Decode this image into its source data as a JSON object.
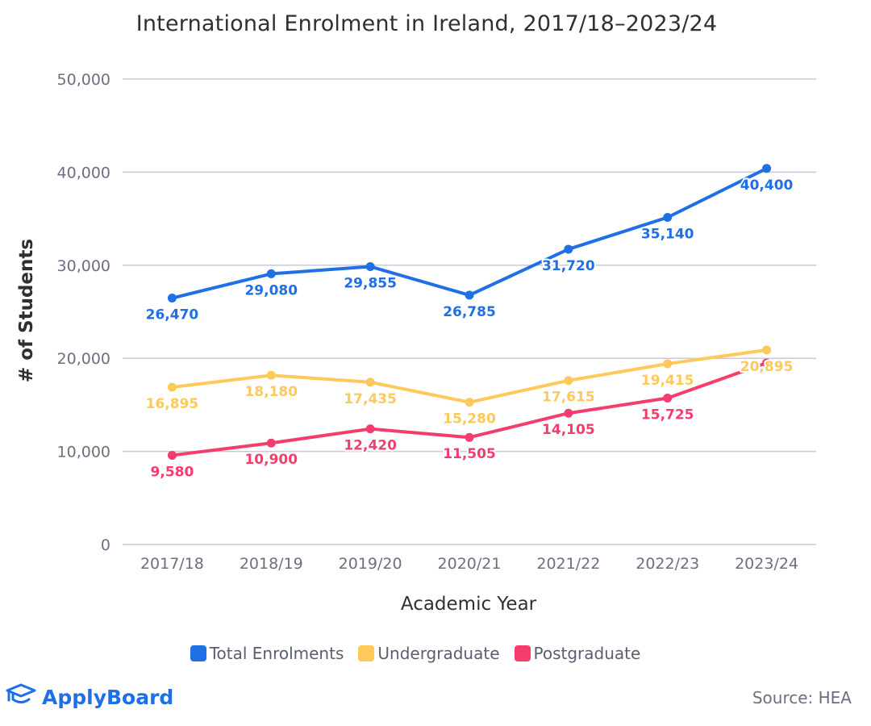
{
  "chart_data": {
    "type": "line",
    "title": "International Enrolment in Ireland, 2017/18–2023/24",
    "xlabel": "Academic Year",
    "ylabel": "# of Students",
    "ylim": [
      0,
      50000
    ],
    "yticks": [
      0,
      10000,
      20000,
      30000,
      40000,
      50000
    ],
    "ytick_labels": [
      "0",
      "10,000",
      "20,000",
      "30,000",
      "40,000",
      "50,000"
    ],
    "grid": true,
    "legend_position": "bottom",
    "categories": [
      "2017/18",
      "2018/19",
      "2019/20",
      "2020/21",
      "2021/22",
      "2022/23",
      "2023/24"
    ],
    "series": [
      {
        "name": "Total Enrolments",
        "color": "#1f6fe5",
        "values": [
          26470,
          29080,
          29855,
          26785,
          31720,
          35140,
          40400
        ],
        "labels": [
          "26,470",
          "29,080",
          "29,855",
          "26,785",
          "31,720",
          "35,140",
          "40,400"
        ]
      },
      {
        "name": "Undergraduate",
        "color": "#fdc95a",
        "values": [
          16895,
          18180,
          17435,
          15280,
          17615,
          19415,
          20895
        ],
        "labels": [
          "16,895",
          "18,180",
          "17,435",
          "15,280",
          "17,615",
          "19,415",
          "20,895"
        ]
      },
      {
        "name": "Postgraduate",
        "color": "#f23d6d",
        "values": [
          9580,
          10900,
          12420,
          11505,
          14105,
          15725,
          19505
        ],
        "labels": [
          "9,580",
          "10,900",
          "12,420",
          "11,505",
          "14,105",
          "15,725",
          ""
        ]
      }
    ]
  },
  "branding": {
    "logo_text": "ApplyBoard",
    "logo_icon": "graduation-cap-icon",
    "source": "Source: HEA"
  }
}
